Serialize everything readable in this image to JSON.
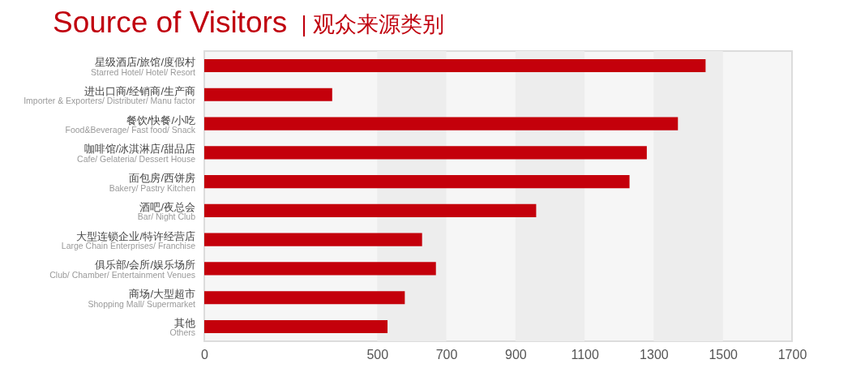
{
  "chart_data": {
    "type": "bar",
    "orientation": "horizontal",
    "title": "Source of Visitors",
    "subtitle": "| 观众来源类别",
    "categories": [
      "星级酒店/旅馆/度假村\nStarred Hotel/ Hotel/ Resort",
      "进出口商/经销商/生产商\nImporter & Exporters/ Distributer/ Manu factor",
      "餐饮/快餐/小吃\nFood&Beverage/ Fast food/ Snack",
      "咖啡馆/冰淇淋店/甜品店\nCafe/ Gelateria/ Dessert House",
      "面包房/西饼房\nBakery/ Pastry Kitchen",
      "酒吧/夜总会\nBar/ Night Club",
      "大型连锁企业/特许经营店\nLarge Chain Enterprises/ Franchise",
      "俱乐部/会所/娱乐场所\nClub/ Chamber/ Entertainment Venues",
      "商场/大型超市\nShopping Mall/ Supermarket",
      "其他\nOthers"
    ],
    "values": [
      1450,
      370,
      1370,
      1280,
      1230,
      960,
      630,
      670,
      580,
      530
    ],
    "color": "#c4000b",
    "xlim": [
      0,
      1700
    ],
    "xticks": [
      0,
      500,
      700,
      900,
      1100,
      1300,
      1500,
      1700
    ],
    "bands": [
      {
        "axis": "x",
        "from": 500,
        "to": 700,
        "color": "#ededed"
      },
      {
        "axis": "x",
        "from": 900,
        "to": 1100,
        "color": "#ededed"
      },
      {
        "axis": "x",
        "from": 1300,
        "to": 1500,
        "color": "#ededed"
      }
    ]
  }
}
